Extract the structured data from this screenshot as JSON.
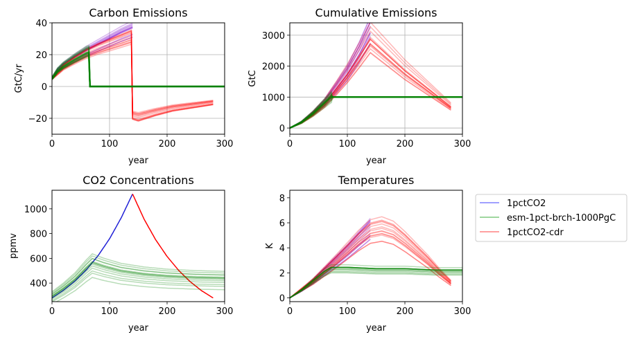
{
  "colors": {
    "1pctCO2": "#7a00c8",
    "esm-1pct-brch-1000PgC": "#008000",
    "1pctCO2-cdr": "#ff0000",
    "co2_1pct_line": "#1f1fd6",
    "grid": "#b0b0b0"
  },
  "legend": {
    "placement": "right of Temperatures panel",
    "entries": [
      {
        "label": "1pctCO2",
        "color": "#8080ff"
      },
      {
        "label": "esm-1pct-brch-1000PgC",
        "color": "#7fc97f"
      },
      {
        "label": "1pctCO2-cdr",
        "color": "#ff8080"
      }
    ]
  },
  "chart_data": [
    {
      "id": "emissions",
      "type": "line",
      "title": "Carbon Emissions",
      "xlabel": "year",
      "ylabel": "GtC/yr",
      "xlim": [
        0,
        300
      ],
      "ylim": [
        -30,
        40
      ],
      "xticks": [
        0,
        100,
        200,
        300
      ],
      "yticks": [
        -20,
        0,
        20,
        40
      ],
      "ytick_labels": [
        "−20",
        "0",
        "20",
        "40"
      ],
      "grid": true,
      "series": [
        {
          "name": "1pctCO2",
          "x": [
            0,
            10,
            20,
            40,
            60,
            80,
            100,
            120,
            140
          ],
          "y": [
            5,
            10,
            13,
            17.5,
            21.5,
            25,
            28.5,
            32,
            35
          ]
        },
        {
          "name": "1pctCO2-cdr",
          "x": [
            0,
            20,
            40,
            60,
            80,
            100,
            120,
            139,
            140,
            150,
            180,
            210,
            240,
            270,
            280
          ],
          "y": [
            5,
            12,
            16.5,
            20.5,
            23.5,
            26,
            28.5,
            31,
            -18,
            -19,
            -16,
            -13.5,
            -12,
            -10.5,
            -10
          ]
        },
        {
          "name": "esm-1pct-brch-1000PgC",
          "x": [
            0,
            10,
            20,
            40,
            60,
            65,
            66,
            80,
            150,
            300
          ],
          "y": [
            5,
            10,
            13,
            17.5,
            21.5,
            22,
            0,
            0,
            0,
            0
          ]
        }
      ]
    },
    {
      "id": "cumulative",
      "type": "line",
      "title": "Cumulative Emissions",
      "xlabel": "year",
      "ylabel": "GtC",
      "xlim": [
        0,
        300
      ],
      "ylim": [
        -200,
        3400
      ],
      "xticks": [
        0,
        100,
        200,
        300
      ],
      "yticks": [
        0,
        1000,
        2000,
        3000
      ],
      "grid": true,
      "series": [
        {
          "name": "1pctCO2",
          "x": [
            0,
            20,
            40,
            60,
            80,
            100,
            120,
            140
          ],
          "y": [
            0,
            190,
            480,
            830,
            1300,
            1800,
            2450,
            3200
          ]
        },
        {
          "name": "1pctCO2-cdr",
          "x": [
            0,
            20,
            40,
            60,
            80,
            100,
            120,
            140,
            160,
            180,
            200,
            220,
            240,
            260,
            280
          ],
          "y": [
            0,
            180,
            460,
            800,
            1280,
            1780,
            2350,
            2950,
            2600,
            2250,
            1900,
            1600,
            1300,
            1000,
            700
          ]
        },
        {
          "name": "esm-1pct-brch-1000PgC",
          "x": [
            0,
            20,
            40,
            60,
            72,
            100,
            200,
            300
          ],
          "y": [
            0,
            180,
            460,
            800,
            1000,
            1000,
            1000,
            1000
          ]
        }
      ]
    },
    {
      "id": "co2",
      "type": "line",
      "title": "CO2 Concentrations",
      "xlabel": "year",
      "ylabel": "ppmv",
      "xlim": [
        0,
        300
      ],
      "ylim": [
        250,
        1150
      ],
      "xticks": [
        0,
        100,
        200,
        300
      ],
      "yticks": [
        400,
        600,
        800,
        1000
      ],
      "grid": false,
      "series": [
        {
          "name": "1pctCO2",
          "x": [
            0,
            20,
            40,
            60,
            80,
            100,
            120,
            140
          ],
          "y": [
            280,
            342,
            417,
            509,
            621,
            758,
            925,
            1120
          ]
        },
        {
          "name": "1pctCO2-cdr",
          "x": [
            140,
            160,
            180,
            200,
            220,
            240,
            260,
            280
          ],
          "y": [
            1120,
            917,
            751,
            615,
            503,
            412,
            338,
            280
          ]
        },
        {
          "name": "esm-1pct-brch-1000PgC",
          "x": [
            0,
            20,
            40,
            60,
            70,
            90,
            120,
            160,
            200,
            250,
            300
          ],
          "y": [
            280,
            340,
            410,
            500,
            540,
            510,
            475,
            450,
            435,
            425,
            420
          ]
        }
      ]
    },
    {
      "id": "temperature",
      "type": "line",
      "title": "Temperatures",
      "xlabel": "year",
      "ylabel": "K",
      "xlim": [
        0,
        300
      ],
      "ylim": [
        -0.3,
        8.6
      ],
      "xticks": [
        0,
        100,
        200,
        300
      ],
      "yticks": [
        0,
        2,
        4,
        6,
        8
      ],
      "grid": false,
      "series": [
        {
          "name": "1pctCO2",
          "x": [
            0,
            20,
            40,
            60,
            80,
            100,
            120,
            140
          ],
          "y": [
            0,
            0.6,
            1.3,
            2.1,
            2.9,
            3.7,
            4.6,
            5.5
          ]
        },
        {
          "name": "1pctCO2-cdr",
          "x": [
            0,
            40,
            80,
            120,
            140,
            160,
            180,
            200,
            220,
            240,
            260,
            280
          ],
          "y": [
            0,
            1.3,
            2.9,
            4.6,
            5.3,
            5.5,
            5.2,
            4.5,
            3.7,
            2.9,
            2.0,
            1.2
          ]
        },
        {
          "name": "esm-1pct-brch-1000PgC",
          "x": [
            0,
            20,
            40,
            60,
            72,
            100,
            150,
            200,
            250,
            300
          ],
          "y": [
            0,
            0.6,
            1.3,
            2.0,
            2.3,
            2.3,
            2.2,
            2.2,
            2.1,
            2.1
          ]
        }
      ]
    }
  ]
}
